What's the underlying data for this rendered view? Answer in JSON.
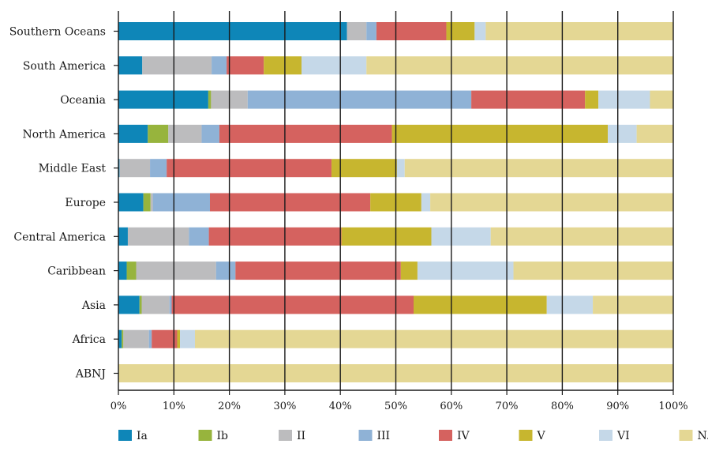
{
  "chart_data": {
    "type": "bar",
    "orientation": "horizontal",
    "stacked": "percent",
    "categories": [
      "Southern Oceans",
      "South America",
      "Oceania",
      "North America",
      "Middle East",
      "Europe",
      "Central America",
      "Caribbean",
      "Asia",
      "Africa",
      "ABNJ"
    ],
    "series": [
      {
        "name": "Ia",
        "color": "#0e86b8",
        "values": [
          41.2,
          4.3,
          16.2,
          5.3,
          0.2,
          4.5,
          1.7,
          1.5,
          3.8,
          0.6,
          0
        ]
      },
      {
        "name": "Ib",
        "color": "#97b43d",
        "values": [
          0,
          0,
          0.5,
          3.7,
          0,
          1.3,
          0,
          1.7,
          0.4,
          0.3,
          0
        ]
      },
      {
        "name": "II",
        "color": "#bcbcbe",
        "values": [
          3.5,
          12.5,
          6.6,
          6.0,
          5.5,
          0.4,
          11.0,
          14.4,
          5.0,
          4.6,
          0
        ]
      },
      {
        "name": "III",
        "color": "#8fb2d6",
        "values": [
          1.8,
          2.7,
          40.3,
          3.2,
          3.0,
          10.3,
          3.6,
          3.5,
          0.4,
          0.5,
          0
        ]
      },
      {
        "name": "IV",
        "color": "#d5625f",
        "values": [
          12.6,
          6.7,
          20.5,
          31.1,
          29.7,
          28.9,
          23.9,
          29.8,
          43.6,
          4.6,
          0
        ]
      },
      {
        "name": "V",
        "color": "#c7b62f",
        "values": [
          5.1,
          6.8,
          2.4,
          38.9,
          11.8,
          9.2,
          16.2,
          3.0,
          24.0,
          0.5,
          0
        ]
      },
      {
        "name": "VI",
        "color": "#c5d8e8",
        "values": [
          2.0,
          11.7,
          9.3,
          5.2,
          1.4,
          1.6,
          10.7,
          17.3,
          8.3,
          2.7,
          0
        ]
      },
      {
        "name": "N.R.",
        "color": "#e4d794",
        "values": [
          33.8,
          55.3,
          4.2,
          6.6,
          48.4,
          43.8,
          32.9,
          28.8,
          14.5,
          86.2,
          100
        ]
      }
    ],
    "x_ticks": [
      "0%",
      "10%",
      "20%",
      "30%",
      "40%",
      "50%",
      "60%",
      "70%",
      "80%",
      "90%",
      "100%"
    ],
    "xlim": [
      0,
      100
    ],
    "title": "",
    "xlabel": "",
    "ylabel": "",
    "grid": "vertical lines at each 10%",
    "legend_position": "bottom"
  }
}
